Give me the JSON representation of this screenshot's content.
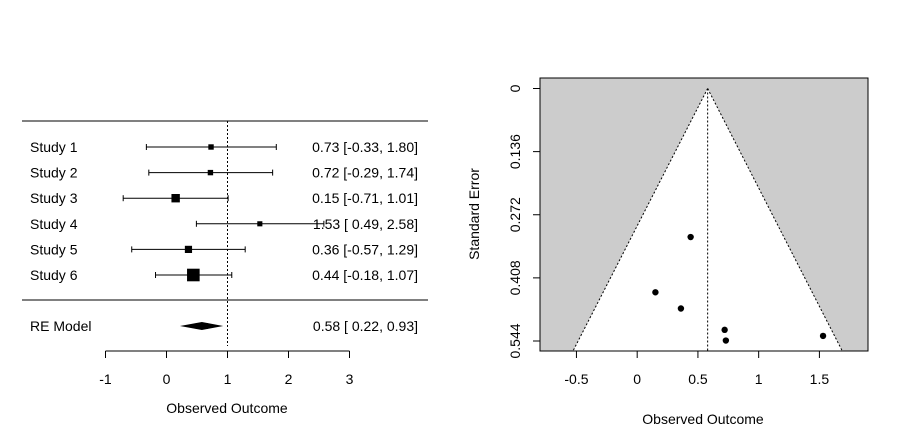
{
  "chart_data": [
    {
      "type": "forest",
      "xlabel": "Observed Outcome",
      "ylabel": "",
      "xlim": [
        -1,
        3
      ],
      "xticks": [
        "-1",
        "0",
        "1",
        "2",
        "3"
      ],
      "reference_line": 1,
      "studies": [
        {
          "label": "Study 1",
          "estimate": 0.73,
          "lower": -0.33,
          "upper": 1.8,
          "text": "0.73 [-0.33, 1.80]"
        },
        {
          "label": "Study 2",
          "estimate": 0.72,
          "lower": -0.29,
          "upper": 1.74,
          "text": "0.72 [-0.29, 1.74]"
        },
        {
          "label": "Study 3",
          "estimate": 0.15,
          "lower": -0.71,
          "upper": 1.01,
          "text": "0.15 [-0.71, 1.01]"
        },
        {
          "label": "Study 4",
          "estimate": 1.53,
          "lower": 0.49,
          "upper": 2.58,
          "text": "1.53 [ 0.49, 2.58]"
        },
        {
          "label": "Study 5",
          "estimate": 0.36,
          "lower": -0.57,
          "upper": 1.29,
          "text": "0.36 [-0.57, 1.29]"
        },
        {
          "label": "Study 6",
          "estimate": 0.44,
          "lower": -0.18,
          "upper": 1.07,
          "text": "0.44 [-0.18, 1.07]"
        }
      ],
      "weights": [
        0.4,
        0.4,
        0.9,
        0.35,
        0.7,
        1.6
      ],
      "summary": {
        "label": "RE Model",
        "estimate": 0.58,
        "lower": 0.22,
        "upper": 0.93,
        "text": "0.58 [ 0.22, 0.93]"
      }
    },
    {
      "type": "funnel",
      "xlabel": "Observed Outcome",
      "ylabel": "Standard Error",
      "xlim": [
        -0.8,
        1.9
      ],
      "ylim": [
        0,
        0.544
      ],
      "xticks": [
        "-0.5",
        "0",
        "0.5",
        "1",
        "1.5"
      ],
      "xtick_values": [
        -0.5,
        0,
        0.5,
        1,
        1.5
      ],
      "yticks": [
        "0",
        "0.136",
        "0.272",
        "0.408",
        "0.544"
      ],
      "ytick_values": [
        0,
        0.136,
        0.272,
        0.408,
        0.544
      ],
      "center": 0.58,
      "points": [
        {
          "x": 0.73,
          "se": 0.543
        },
        {
          "x": 0.72,
          "se": 0.52
        },
        {
          "x": 0.15,
          "se": 0.439
        },
        {
          "x": 1.53,
          "se": 0.533
        },
        {
          "x": 0.36,
          "se": 0.474
        },
        {
          "x": 0.44,
          "se": 0.32
        }
      ],
      "colors": {
        "region": "#cccccc",
        "inner": "#ffffff",
        "points": "#000000"
      }
    }
  ]
}
